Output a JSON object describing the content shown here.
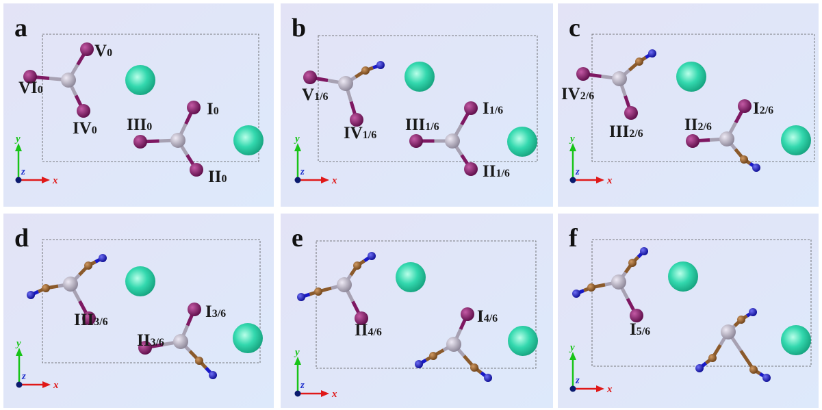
{
  "panels": [
    {
      "letter": "a",
      "labels": [
        {
          "main": "V",
          "sub": "0"
        },
        {
          "main": "VI",
          "sub": "0"
        },
        {
          "main": "IV",
          "sub": "0"
        },
        {
          "main": "III",
          "sub": "0"
        },
        {
          "main": "I",
          "sub": "0"
        },
        {
          "main": "II",
          "sub": "0"
        }
      ]
    },
    {
      "letter": "b",
      "labels": [
        {
          "main": "V",
          "sub": "1/6"
        },
        {
          "main": "IV",
          "sub": "1/6"
        },
        {
          "main": "III",
          "sub": "1/6"
        },
        {
          "main": "I",
          "sub": "1/6"
        },
        {
          "main": "II",
          "sub": "1/6"
        }
      ]
    },
    {
      "letter": "c",
      "labels": [
        {
          "main": "IV",
          "sub": "2/6"
        },
        {
          "main": "III",
          "sub": "2/6"
        },
        {
          "main": "II",
          "sub": "2/6"
        },
        {
          "main": "I",
          "sub": "2/6"
        }
      ]
    },
    {
      "letter": "d",
      "labels": [
        {
          "main": "III",
          "sub": "3/6"
        },
        {
          "main": "II",
          "sub": "3/6"
        },
        {
          "main": "I",
          "sub": "3/6"
        }
      ]
    },
    {
      "letter": "e",
      "labels": [
        {
          "main": "II",
          "sub": "4/6"
        },
        {
          "main": "I",
          "sub": "4/6"
        }
      ]
    },
    {
      "letter": "f",
      "labels": [
        {
          "main": "I",
          "sub": "5/6"
        }
      ]
    }
  ],
  "axes": {
    "x": "x",
    "y": "y",
    "z": "z"
  }
}
